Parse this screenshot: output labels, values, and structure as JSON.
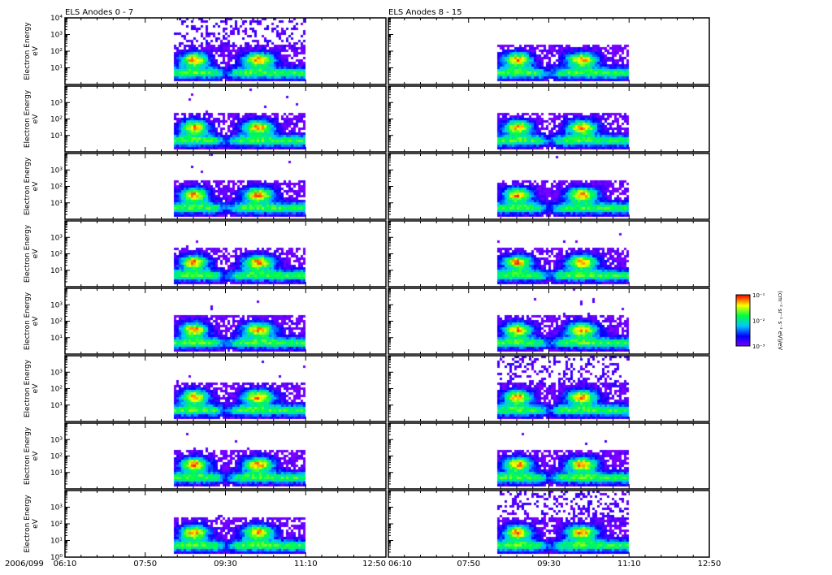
{
  "chart_data": {
    "type": "heatmap",
    "date_label": "2006/099",
    "columns": [
      {
        "title": "ELS Anodes 0 - 7",
        "panels": 8
      },
      {
        "title": "ELS Anodes 8 - 15",
        "panels": 8
      }
    ],
    "ylabel": "Electron Energy",
    "yunit": "eV",
    "yscale": "log",
    "ylim": [
      1,
      10000
    ],
    "ytick_labels_top_panel": [
      "10¹",
      "10²",
      "10³",
      "10⁴"
    ],
    "ytick_labels_middle_panels": [
      "10¹",
      "10²",
      "10³"
    ],
    "ytick_labels_bottom_panel": [
      "10⁰",
      "10¹",
      "10²",
      "10³"
    ],
    "xlim": [
      "06:10",
      "12:50"
    ],
    "xtick_labels": [
      "06:10",
      "07:50",
      "09:30",
      "11:10",
      "12:50"
    ],
    "data_time_range": [
      "08:26",
      "11:10"
    ],
    "features": [
      {
        "time": "08:50",
        "energy_eV": 40,
        "note": "peak flux"
      },
      {
        "time": "09:30",
        "note": "flux dropout"
      },
      {
        "time": "10:10",
        "energy_eV": 40,
        "note": "peak flux"
      }
    ],
    "colorbar": {
      "label": "(cm⁻² sr⁻¹ s⁻¹ eV)/eV",
      "tick_labels": [
        "10⁻³",
        "10⁻²",
        "10⁻¹"
      ],
      "colormap": [
        "#7a00ff",
        "#0000ff",
        "#00c8ff",
        "#00ff40",
        "#ffff00",
        "#ff0000"
      ]
    }
  }
}
